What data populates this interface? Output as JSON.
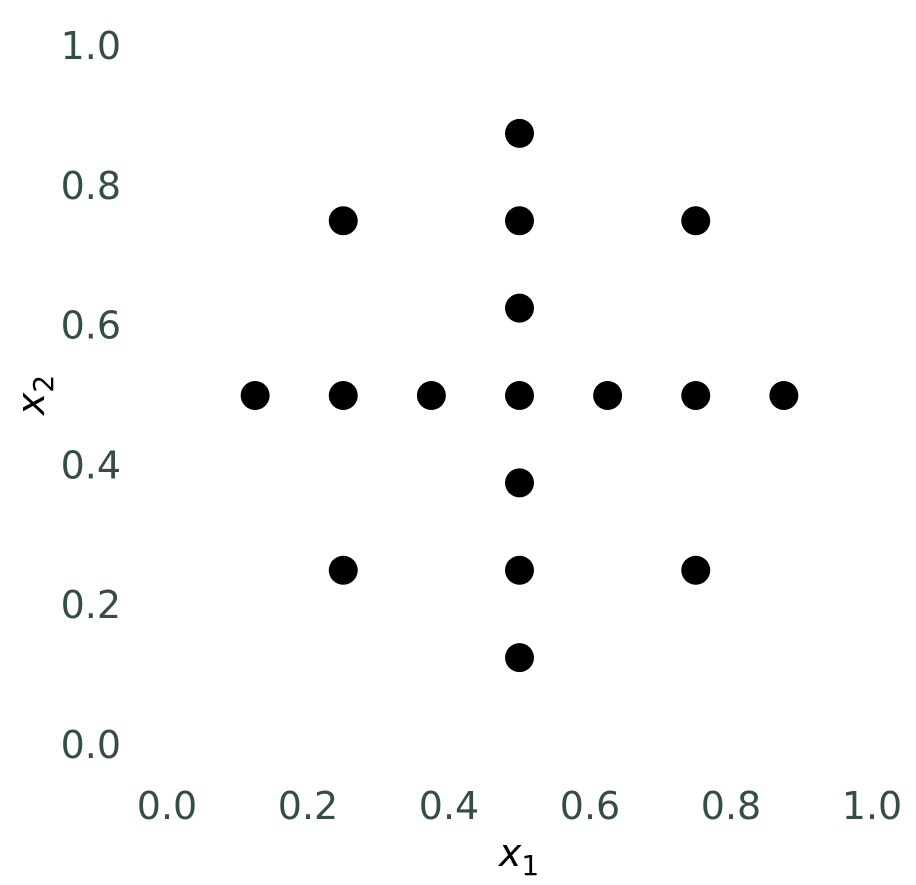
{
  "chart_data": {
    "type": "scatter",
    "title": "",
    "xlabel": "x",
    "xlabel_sub": "1",
    "ylabel": "x",
    "ylabel_sub": "2",
    "xlim": [
      0.0,
      1.0
    ],
    "ylim": [
      0.0,
      1.0
    ],
    "xticks": [
      0.0,
      0.2,
      0.4,
      0.6,
      0.8,
      1.0
    ],
    "yticks": [
      0.0,
      0.2,
      0.4,
      0.6,
      0.8,
      1.0
    ],
    "xtick_labels": [
      "0.0",
      "0.2",
      "0.4",
      "0.6",
      "0.8",
      "1.0"
    ],
    "ytick_labels": [
      "0.0",
      "0.2",
      "0.4",
      "0.6",
      "0.8",
      "1.0"
    ],
    "grid": false,
    "marker_color": "#000000",
    "tick_label_color": "#344e41",
    "series": [
      {
        "points": [
          {
            "x": 0.5,
            "y": 0.875
          },
          {
            "x": 0.25,
            "y": 0.75
          },
          {
            "x": 0.5,
            "y": 0.75
          },
          {
            "x": 0.75,
            "y": 0.75
          },
          {
            "x": 0.5,
            "y": 0.625
          },
          {
            "x": 0.125,
            "y": 0.5
          },
          {
            "x": 0.25,
            "y": 0.5
          },
          {
            "x": 0.375,
            "y": 0.5
          },
          {
            "x": 0.5,
            "y": 0.5
          },
          {
            "x": 0.625,
            "y": 0.5
          },
          {
            "x": 0.75,
            "y": 0.5
          },
          {
            "x": 0.875,
            "y": 0.5
          },
          {
            "x": 0.5,
            "y": 0.375
          },
          {
            "x": 0.25,
            "y": 0.25
          },
          {
            "x": 0.5,
            "y": 0.25
          },
          {
            "x": 0.75,
            "y": 0.25
          },
          {
            "x": 0.5,
            "y": 0.125
          }
        ]
      }
    ]
  }
}
